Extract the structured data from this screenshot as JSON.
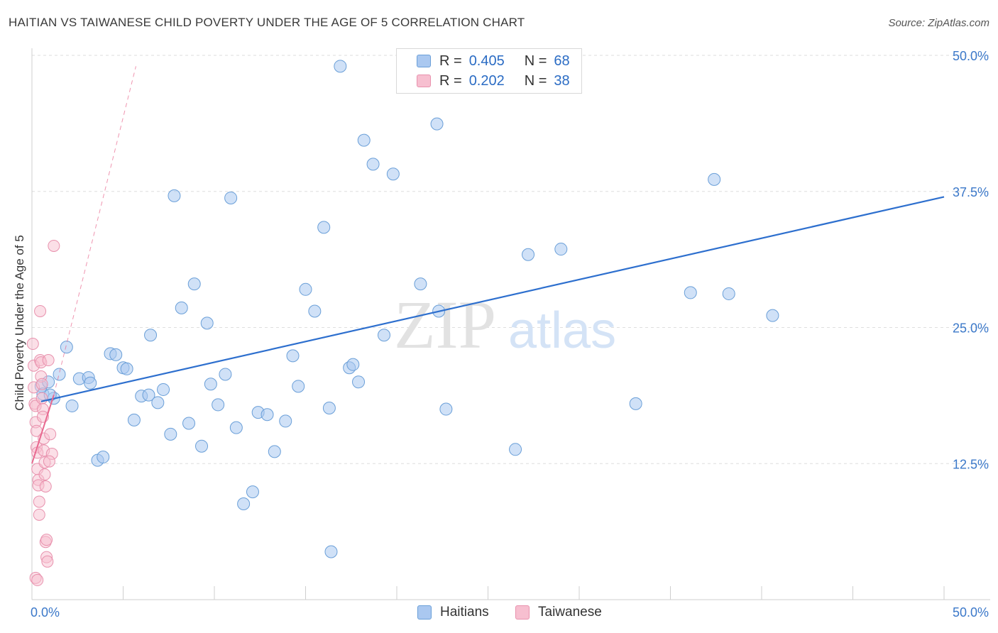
{
  "title": "HAITIAN VS TAIWANESE CHILD POVERTY UNDER THE AGE OF 5 CORRELATION CHART",
  "source": "Source: ZipAtlas.com",
  "watermark": {
    "zip": "ZIP",
    "atlas": "atlas"
  },
  "legend": {
    "r_label": "R =",
    "n_label": "N =",
    "haitians": {
      "r": "0.405",
      "n": "68"
    },
    "taiwanese": {
      "r": "0.202",
      "n": "38"
    }
  },
  "bottom_legend": {
    "haitians": "Haitians",
    "taiwanese": "Taiwanese"
  },
  "colors": {
    "haitians_fill": "#aac8f0",
    "haitians_stroke": "#6a9fd8",
    "haitians_line": "#2d6fce",
    "taiwanese_fill": "#f7bfd0",
    "taiwanese_stroke": "#e891ad",
    "taiwanese_line": "#e8688f",
    "tick_label": "#3b78c9",
    "grid": "#dedede"
  },
  "chart_data": {
    "type": "scatter",
    "title": "HAITIAN VS TAIWANESE CHILD POVERTY UNDER THE AGE OF 5 CORRELATION CHART",
    "xlabel": "",
    "ylabel": "Child Poverty Under the Age of 5",
    "xlim": [
      0,
      50
    ],
    "ylim": [
      0,
      50
    ],
    "x_tick_labels": [
      "0.0%",
      "50.0%"
    ],
    "y_ticks": [
      12.5,
      25.0,
      37.5,
      50.0
    ],
    "y_tick_labels": [
      "12.5%",
      "25.0%",
      "37.5%",
      "50.0%"
    ],
    "grid": true,
    "legend_position": "top-center",
    "series": [
      {
        "name": "Haitians",
        "trend": {
          "x": [
            0.5,
            50
          ],
          "y": [
            18.2,
            37.0
          ]
        },
        "points": [
          [
            0.5,
            19.6
          ],
          [
            0.6,
            18.9
          ],
          [
            0.9,
            20.0
          ],
          [
            1.2,
            18.5
          ],
          [
            1.5,
            20.7
          ],
          [
            1.9,
            23.2
          ],
          [
            2.2,
            17.8
          ],
          [
            2.6,
            20.3
          ],
          [
            3.1,
            20.4
          ],
          [
            3.2,
            19.9
          ],
          [
            3.6,
            12.8
          ],
          [
            3.9,
            13.1
          ],
          [
            4.3,
            22.6
          ],
          [
            4.6,
            22.5
          ],
          [
            5.0,
            21.3
          ],
          [
            5.2,
            21.2
          ],
          [
            5.6,
            16.5
          ],
          [
            6.0,
            18.7
          ],
          [
            6.4,
            18.8
          ],
          [
            6.5,
            24.3
          ],
          [
            6.9,
            18.1
          ],
          [
            7.2,
            19.3
          ],
          [
            7.6,
            15.2
          ],
          [
            7.8,
            37.1
          ],
          [
            8.2,
            26.8
          ],
          [
            8.6,
            16.2
          ],
          [
            8.9,
            29.0
          ],
          [
            9.3,
            14.1
          ],
          [
            9.6,
            25.4
          ],
          [
            9.8,
            19.8
          ],
          [
            10.2,
            17.9
          ],
          [
            10.6,
            20.7
          ],
          [
            10.9,
            36.9
          ],
          [
            11.2,
            15.8
          ],
          [
            11.6,
            8.8
          ],
          [
            12.1,
            9.9
          ],
          [
            12.4,
            17.2
          ],
          [
            12.9,
            17.0
          ],
          [
            13.3,
            13.6
          ],
          [
            13.9,
            16.4
          ],
          [
            14.3,
            22.4
          ],
          [
            14.6,
            19.6
          ],
          [
            15.0,
            28.5
          ],
          [
            15.5,
            26.5
          ],
          [
            16.0,
            34.2
          ],
          [
            16.3,
            17.6
          ],
          [
            16.4,
            4.4
          ],
          [
            16.9,
            49.0
          ],
          [
            17.4,
            21.3
          ],
          [
            17.6,
            21.6
          ],
          [
            17.9,
            20.0
          ],
          [
            18.2,
            42.2
          ],
          [
            18.7,
            40.0
          ],
          [
            19.3,
            24.3
          ],
          [
            19.8,
            39.1
          ],
          [
            21.3,
            29.0
          ],
          [
            22.2,
            43.7
          ],
          [
            22.3,
            26.5
          ],
          [
            22.7,
            17.5
          ],
          [
            26.5,
            13.8
          ],
          [
            27.2,
            31.7
          ],
          [
            29.0,
            32.2
          ],
          [
            33.1,
            18.0
          ],
          [
            36.1,
            28.2
          ],
          [
            37.4,
            38.6
          ],
          [
            38.2,
            28.1
          ],
          [
            40.6,
            26.1
          ],
          [
            1.0,
            18.8
          ]
        ]
      },
      {
        "name": "Taiwanese",
        "trend": {
          "x": [
            0.0,
            1.2
          ],
          "y": [
            12.5,
            18.8
          ]
        },
        "trend_dashed": {
          "x": [
            1.2,
            5.7
          ],
          "y": [
            18.8,
            49.0
          ]
        },
        "points": [
          [
            0.05,
            23.5
          ],
          [
            0.1,
            21.5
          ],
          [
            0.1,
            19.5
          ],
          [
            0.15,
            18.0
          ],
          [
            0.2,
            17.8
          ],
          [
            0.2,
            16.3
          ],
          [
            0.25,
            15.5
          ],
          [
            0.25,
            14.0
          ],
          [
            0.3,
            13.5
          ],
          [
            0.3,
            12.0
          ],
          [
            0.35,
            11.0
          ],
          [
            0.35,
            10.5
          ],
          [
            0.4,
            9.0
          ],
          [
            0.4,
            7.8
          ],
          [
            0.45,
            26.5
          ],
          [
            0.45,
            22.0
          ],
          [
            0.5,
            21.8
          ],
          [
            0.5,
            20.5
          ],
          [
            0.55,
            19.8
          ],
          [
            0.55,
            18.5
          ],
          [
            0.6,
            17.5
          ],
          [
            0.6,
            16.8
          ],
          [
            0.65,
            14.8
          ],
          [
            0.65,
            13.7
          ],
          [
            0.7,
            12.6
          ],
          [
            0.7,
            11.5
          ],
          [
            0.75,
            10.4
          ],
          [
            0.75,
            5.3
          ],
          [
            0.8,
            5.5
          ],
          [
            0.8,
            3.9
          ],
          [
            0.85,
            3.5
          ],
          [
            0.2,
            2.0
          ],
          [
            0.3,
            1.8
          ],
          [
            0.9,
            22.0
          ],
          [
            1.0,
            15.2
          ],
          [
            1.1,
            13.4
          ],
          [
            0.95,
            12.7
          ],
          [
            1.2,
            32.5
          ]
        ]
      }
    ]
  }
}
